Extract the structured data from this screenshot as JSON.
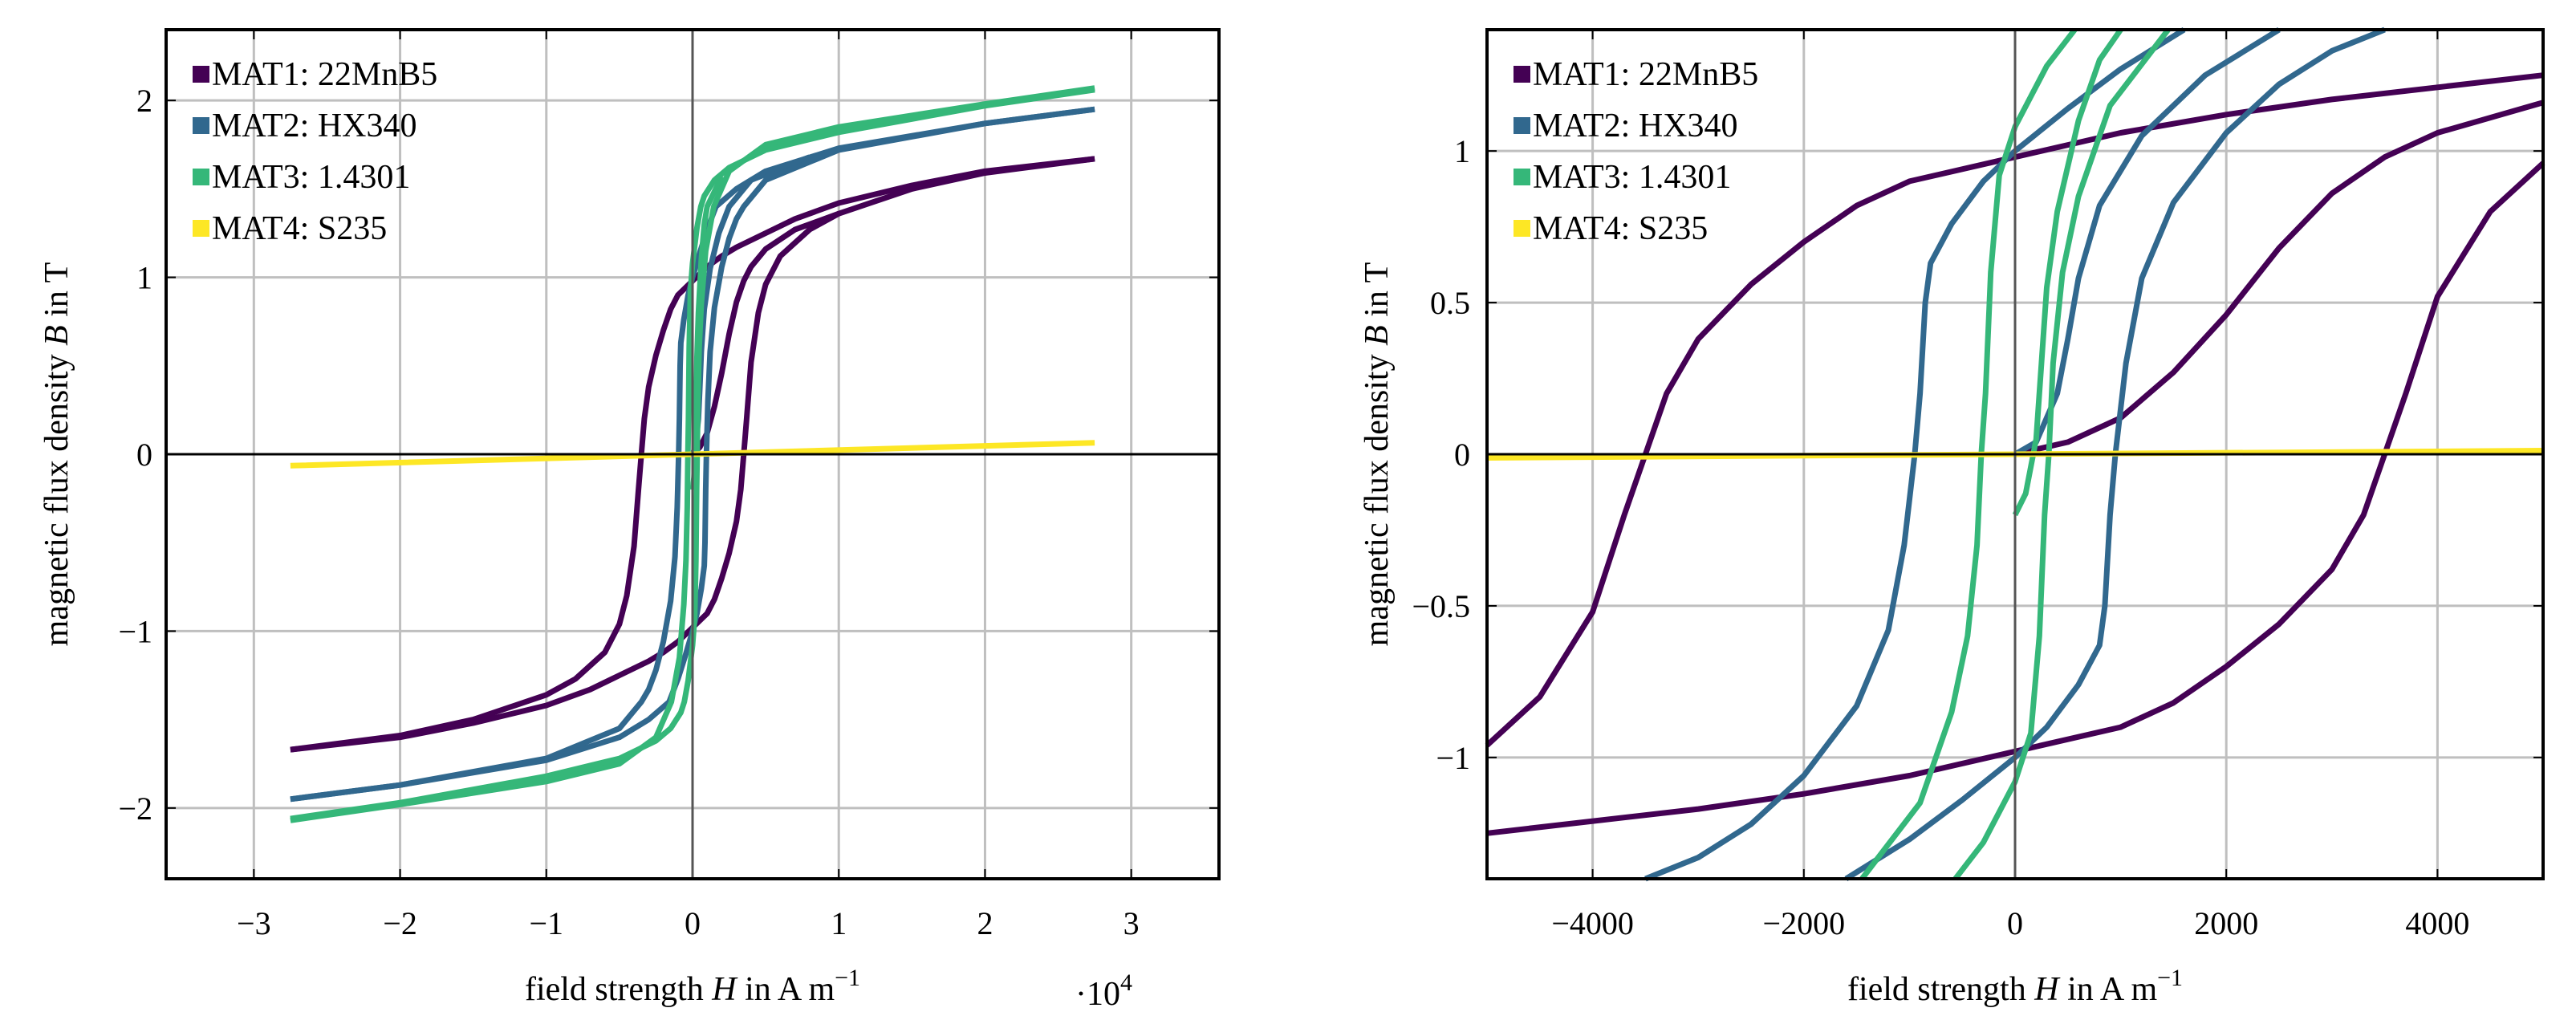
{
  "colors": {
    "MAT1": "#440154",
    "MAT2": "#31688e",
    "MAT3": "#35b779",
    "MAT4": "#fde725",
    "grid": "#bfbfbf"
  },
  "legend": [
    "MAT1: 22MnB5",
    "MAT2: HX340",
    "MAT3: 1.4301",
    "MAT4: S235"
  ],
  "chart_data": [
    {
      "type": "line",
      "title": "",
      "xlabel": {
        "pre": "field strength ",
        "var": "H",
        "unit": " in A m",
        "exp": "−1"
      },
      "ylabel": {
        "pre": "magnetic flux density ",
        "var": "B",
        "unit": " in T"
      },
      "x_scale_label": {
        "base": "·10",
        "exp": "4"
      },
      "x_scale_factor": 10000,
      "xlim": [
        -36000,
        36000
      ],
      "ylim": [
        -2.4,
        2.4
      ],
      "xticks": [
        -30000,
        -20000,
        -10000,
        0,
        10000,
        20000,
        30000
      ],
      "xtick_labels": [
        "−3",
        "−2",
        "−1",
        "0",
        "1",
        "2",
        "3"
      ],
      "yticks": [
        -2,
        -1,
        0,
        1,
        2
      ],
      "ytick_labels": [
        "−2",
        "−1",
        "0",
        "1",
        "2"
      ],
      "grid": true,
      "legend_position": "top-left"
    },
    {
      "type": "line",
      "title": "",
      "xlabel": {
        "pre": "field strength ",
        "var": "H",
        "unit": " in A m",
        "exp": "−1"
      },
      "ylabel": {
        "pre": "magnetic flux density ",
        "var": "B",
        "unit": " in T"
      },
      "xlim": [
        -5000,
        5000
      ],
      "ylim": [
        -1.4,
        1.4
      ],
      "xticks": [
        -4000,
        -2000,
        0,
        2000,
        4000
      ],
      "xtick_labels": [
        "−4000",
        "−2000",
        "0",
        "2000",
        "4000"
      ],
      "yticks": [
        -1,
        -0.5,
        0,
        0.5,
        1
      ],
      "ytick_labels": [
        "−1",
        "−0.5",
        "0",
        "0.5",
        "1"
      ],
      "grid": true,
      "legend_position": "top-left"
    }
  ],
  "series": [
    {
      "name": "MAT1: 22MnB5",
      "color_key": "MAT1",
      "descending_branch": [
        [
          27500,
          1.67
        ],
        [
          20000,
          1.6
        ],
        [
          15000,
          1.52
        ],
        [
          10000,
          1.42
        ],
        [
          7000,
          1.33
        ],
        [
          5000,
          1.25
        ],
        [
          3000,
          1.17
        ],
        [
          2000,
          1.12
        ],
        [
          1000,
          1.06
        ],
        [
          0,
          0.98
        ],
        [
          -1000,
          0.9
        ],
        [
          -1500,
          0.82
        ],
        [
          -2000,
          0.7
        ],
        [
          -2500,
          0.56
        ],
        [
          -3000,
          0.38
        ],
        [
          -3300,
          0.2
        ],
        [
          -3500,
          0
        ],
        [
          -3700,
          -0.2
        ],
        [
          -4000,
          -0.52
        ],
        [
          -4500,
          -0.8
        ],
        [
          -5000,
          -0.96
        ],
        [
          -6000,
          -1.12
        ],
        [
          -8000,
          -1.27
        ],
        [
          -10000,
          -1.36
        ],
        [
          -15000,
          -1.5
        ],
        [
          -20000,
          -1.59
        ],
        [
          -27500,
          -1.67
        ]
      ],
      "initial_curve": [
        [
          0,
          0
        ],
        [
          500,
          0.04
        ],
        [
          1000,
          0.12
        ],
        [
          1500,
          0.27
        ],
        [
          2000,
          0.46
        ],
        [
          2500,
          0.68
        ],
        [
          3000,
          0.86
        ],
        [
          3500,
          0.98
        ],
        [
          4000,
          1.06
        ],
        [
          5000,
          1.16
        ],
        [
          7000,
          1.27
        ],
        [
          10000,
          1.36
        ]
      ]
    },
    {
      "name": "MAT2: HX340",
      "color_key": "MAT2",
      "descending_branch": [
        [
          27500,
          1.95
        ],
        [
          20000,
          1.87
        ],
        [
          10000,
          1.73
        ],
        [
          5000,
          1.6
        ],
        [
          3000,
          1.5
        ],
        [
          1600,
          1.4
        ],
        [
          1000,
          1.27
        ],
        [
          500,
          1.14
        ],
        [
          0,
          1.0
        ],
        [
          -300,
          0.9
        ],
        [
          -600,
          0.76
        ],
        [
          -800,
          0.63
        ],
        [
          -850,
          0.5
        ],
        [
          -900,
          0.2
        ],
        [
          -950,
          0
        ],
        [
          -1050,
          -0.3
        ],
        [
          -1200,
          -0.58
        ],
        [
          -1500,
          -0.83
        ],
        [
          -2000,
          -1.06
        ],
        [
          -2500,
          -1.22
        ],
        [
          -3000,
          -1.33
        ],
        [
          -3500,
          -1.4
        ],
        [
          -5000,
          -1.55
        ],
        [
          -10000,
          -1.72
        ],
        [
          -20000,
          -1.87
        ],
        [
          -27500,
          -1.95
        ]
      ],
      "initial_curve": [
        [
          0,
          0
        ],
        [
          200,
          0.04
        ],
        [
          400,
          0.2
        ],
        [
          500,
          0.38
        ],
        [
          600,
          0.58
        ],
        [
          800,
          0.82
        ],
        [
          1200,
          1.05
        ],
        [
          1800,
          1.25
        ],
        [
          2500,
          1.4
        ],
        [
          4000,
          1.55
        ],
        [
          8000,
          1.68
        ]
      ]
    },
    {
      "name": "MAT3: 1.4301",
      "color_key": "MAT3",
      "descending_branch": [
        [
          27500,
          2.06
        ],
        [
          20000,
          1.97
        ],
        [
          10000,
          1.82
        ],
        [
          5000,
          1.72
        ],
        [
          2500,
          1.62
        ],
        [
          1500,
          1.55
        ],
        [
          800,
          1.46
        ],
        [
          565,
          1.4
        ],
        [
          300,
          1.28
        ],
        [
          0,
          1.08
        ],
        [
          -150,
          0.92
        ],
        [
          -230,
          0.6
        ],
        [
          -280,
          0.2
        ],
        [
          -320,
          0
        ],
        [
          -360,
          -0.3
        ],
        [
          -450,
          -0.6
        ],
        [
          -600,
          -0.85
        ],
        [
          -900,
          -1.15
        ],
        [
          -1450,
          -1.4
        ],
        [
          -2500,
          -1.6
        ],
        [
          -5000,
          -1.75
        ],
        [
          -10000,
          -1.85
        ],
        [
          -20000,
          -1.98
        ],
        [
          -27500,
          -2.07
        ]
      ],
      "initial_curve": [
        [
          0,
          -0.2
        ],
        [
          100,
          -0.13
        ],
        [
          200,
          0.05
        ],
        [
          250,
          0.3
        ],
        [
          300,
          0.55
        ],
        [
          400,
          0.8
        ],
        [
          600,
          1.1
        ],
        [
          800,
          1.3
        ],
        [
          1000,
          1.4
        ],
        [
          2000,
          1.57
        ]
      ]
    },
    {
      "name": "MAT4: S235",
      "color_key": "MAT4",
      "curve": [
        [
          -27500,
          -0.065
        ],
        [
          0,
          0
        ],
        [
          27500,
          0.065
        ]
      ]
    }
  ]
}
